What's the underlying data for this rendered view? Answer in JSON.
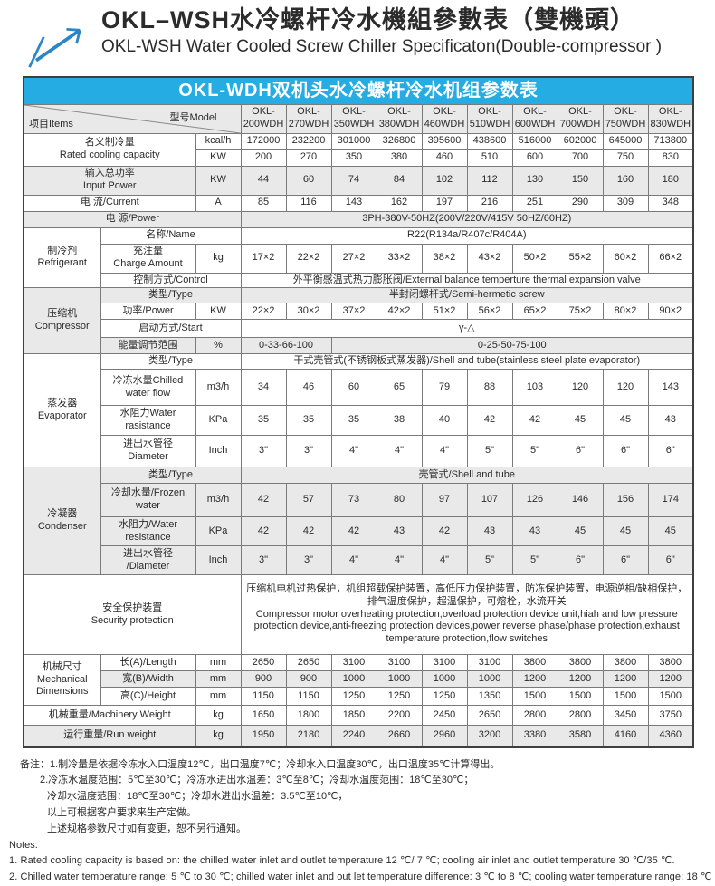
{
  "page": {
    "title_zh": "OKL–WSH水冷螺杆冷水機組參數表（雙機頭）",
    "title_en": "OKL-WSH Water Cooled Screw Chiller Specificaton(Double-compressor )"
  },
  "colors": {
    "banner_cyan": "#25ace3",
    "logo_blue": "#2b86c6",
    "shaded_row": "#e9e9e9",
    "border_dark": "#3f3f3f"
  },
  "table": {
    "banner": "OKL-WDH双机头水冷螺杆冷水机组参数表",
    "corner": {
      "items": "项目Items",
      "model": "型号Model"
    },
    "models": [
      "OKL-\n200WDH",
      "OKL-\n270WDH",
      "OKL-\n350WDH",
      "OKL-\n380WDH",
      "OKL-\n460WDH",
      "OKL-\n510WDH",
      "OKL-\n600WDH",
      "OKL-\n700WDH",
      "OKL-\n750WDH",
      "OKL-\n830WDH"
    ],
    "rows": [
      {
        "name": "row-rated-cooling-kcal",
        "shaded": false,
        "cells": [
          {
            "t": "名义制冷量\nRated cooling capacity",
            "cs": 2,
            "rs": 2,
            "k": "label",
            "name": "label-rated-cooling-capacity"
          },
          {
            "t": "kcal/h",
            "k": "unit",
            "name": "unit-kcal-h"
          },
          {
            "t": "172000"
          },
          {
            "t": "232200"
          },
          {
            "t": "301000"
          },
          {
            "t": "326800"
          },
          {
            "t": "395600"
          },
          {
            "t": "438600"
          },
          {
            "t": "516000"
          },
          {
            "t": "602000"
          },
          {
            "t": "645000"
          },
          {
            "t": "713800"
          }
        ]
      },
      {
        "name": "row-rated-cooling-kw",
        "shaded": false,
        "cells": [
          {
            "t": "KW",
            "k": "unit",
            "name": "unit-kw"
          },
          {
            "t": "200"
          },
          {
            "t": "270"
          },
          {
            "t": "350"
          },
          {
            "t": "380"
          },
          {
            "t": "460"
          },
          {
            "t": "510"
          },
          {
            "t": "600"
          },
          {
            "t": "700"
          },
          {
            "t": "750"
          },
          {
            "t": "830"
          }
        ]
      },
      {
        "name": "row-input-power",
        "shaded": true,
        "cells": [
          {
            "t": "输入总功率\nInput Power",
            "cs": 2,
            "k": "label",
            "name": "label-input-power"
          },
          {
            "t": "KW",
            "k": "unit"
          },
          {
            "t": "44"
          },
          {
            "t": "60"
          },
          {
            "t": "74"
          },
          {
            "t": "84"
          },
          {
            "t": "102"
          },
          {
            "t": "112"
          },
          {
            "t": "130"
          },
          {
            "t": "150"
          },
          {
            "t": "160"
          },
          {
            "t": "180"
          }
        ]
      },
      {
        "name": "row-current",
        "shaded": false,
        "cells": [
          {
            "t": "电  流/Current",
            "cs": 2,
            "k": "label",
            "name": "label-current"
          },
          {
            "t": "A",
            "k": "unit"
          },
          {
            "t": "85"
          },
          {
            "t": "116"
          },
          {
            "t": "143"
          },
          {
            "t": "162"
          },
          {
            "t": "197"
          },
          {
            "t": "216"
          },
          {
            "t": "251"
          },
          {
            "t": "290"
          },
          {
            "t": "309"
          },
          {
            "t": "348"
          }
        ]
      },
      {
        "name": "row-power-source",
        "shaded": true,
        "cells": [
          {
            "t": "电    源/Power",
            "cs": 3,
            "k": "label",
            "name": "label-power-source"
          },
          {
            "t": "3PH-380V-50HZ(200V/220V/415V  50HZ/60HZ)",
            "cs": 10,
            "k": "merge",
            "name": "value-power-source"
          }
        ]
      },
      {
        "name": "row-refrigerant-name",
        "shaded": false,
        "cells": [
          {
            "t": "制冷剂\nRefrigerant",
            "rs": 3,
            "k": "group",
            "name": "group-refrigerant"
          },
          {
            "t": "名称/Name",
            "cs": 2,
            "k": "label",
            "name": "label-refrigerant-name"
          },
          {
            "t": "R22(R134a/R407c/R404A)",
            "cs": 10,
            "k": "merge",
            "name": "value-refrigerant-name"
          }
        ]
      },
      {
        "name": "row-charge-amount",
        "shaded": false,
        "cells": [
          {
            "t": "充注量\nCharge Amount",
            "k": "label",
            "name": "label-charge-amount"
          },
          {
            "t": "kg",
            "k": "unit"
          },
          {
            "t": "17×2"
          },
          {
            "t": "22×2"
          },
          {
            "t": "27×2"
          },
          {
            "t": "33×2"
          },
          {
            "t": "38×2"
          },
          {
            "t": "43×2"
          },
          {
            "t": "50×2"
          },
          {
            "t": "55×2"
          },
          {
            "t": "60×2"
          },
          {
            "t": "66×2"
          }
        ]
      },
      {
        "name": "row-control",
        "shaded": false,
        "cells": [
          {
            "t": "控制方式/Control",
            "cs": 2,
            "k": "label",
            "name": "label-control"
          },
          {
            "t": "外平衡感温式热力膨胀阀/External balance temperture thermal expansion valve",
            "cs": 10,
            "k": "merge",
            "name": "value-control"
          }
        ]
      },
      {
        "name": "row-compressor-type",
        "shaded": true,
        "cells": [
          {
            "t": "压缩机\nCompressor",
            "rs": 4,
            "k": "group",
            "name": "group-compressor"
          },
          {
            "t": "类型/Type",
            "cs": 2,
            "k": "label",
            "name": "label-compressor-type"
          },
          {
            "t": "半封闭螺杆式/Semi-hermetic screw",
            "cs": 10,
            "k": "merge",
            "name": "value-compressor-type"
          }
        ]
      },
      {
        "name": "row-compressor-power",
        "shaded": false,
        "cells": [
          {
            "t": "功率/Power",
            "k": "label",
            "name": "label-compressor-power"
          },
          {
            "t": "KW",
            "k": "unit"
          },
          {
            "t": "22×2"
          },
          {
            "t": "30×2"
          },
          {
            "t": "37×2"
          },
          {
            "t": "42×2"
          },
          {
            "t": "51×2"
          },
          {
            "t": "56×2"
          },
          {
            "t": "65×2"
          },
          {
            "t": "75×2"
          },
          {
            "t": "80×2"
          },
          {
            "t": "90×2"
          }
        ]
      },
      {
        "name": "row-start-mode",
        "shaded": false,
        "cells": [
          {
            "t": "启动方式/Start",
            "cs": 2,
            "k": "label",
            "name": "label-start-mode"
          },
          {
            "t": "γ-△",
            "cs": 10,
            "k": "merge",
            "name": "value-start-mode"
          }
        ]
      },
      {
        "name": "row-capacity-control",
        "shaded": true,
        "cells": [
          {
            "t": "能量调节范围",
            "k": "label",
            "name": "label-capacity-control"
          },
          {
            "t": "%",
            "k": "unit"
          },
          {
            "t": "0-33-66-100",
            "cs": 2,
            "name": "value-capacity-control-small"
          },
          {
            "t": "0-25-50-75-100",
            "cs": 8,
            "name": "value-capacity-control-large"
          }
        ]
      },
      {
        "name": "row-evaporator-type",
        "shaded": false,
        "cells": [
          {
            "t": "蒸发器\nEvaporator",
            "rs": 4,
            "k": "group",
            "name": "group-evaporator"
          },
          {
            "t": "类型/Type",
            "cs": 2,
            "k": "label",
            "name": "label-evaporator-type"
          },
          {
            "t": "干式壳管式(不锈钢板式蒸发器)/Shell and tube(stainless steel plate evaporator)",
            "cs": 10,
            "k": "merge",
            "name": "value-evaporator-type"
          }
        ]
      },
      {
        "name": "row-chilled-water-flow",
        "shaded": false,
        "cells": [
          {
            "t": "冷冻水量Chilled\nwater flow",
            "k": "label",
            "name": "label-chilled-water-flow"
          },
          {
            "t": "m3/h",
            "k": "unit"
          },
          {
            "t": "34"
          },
          {
            "t": "46"
          },
          {
            "t": "60"
          },
          {
            "t": "65"
          },
          {
            "t": "79"
          },
          {
            "t": "88"
          },
          {
            "t": "103"
          },
          {
            "t": "120"
          },
          {
            "t": "120"
          },
          {
            "t": "143"
          }
        ]
      },
      {
        "name": "row-evap-water-resistance",
        "shaded": false,
        "cells": [
          {
            "t": "水阻力Water\nrasistance",
            "k": "label",
            "name": "label-evap-water-resistance"
          },
          {
            "t": "KPa",
            "k": "unit"
          },
          {
            "t": "35"
          },
          {
            "t": "35"
          },
          {
            "t": "35"
          },
          {
            "t": "38"
          },
          {
            "t": "40"
          },
          {
            "t": "42"
          },
          {
            "t": "42"
          },
          {
            "t": "45"
          },
          {
            "t": "45"
          },
          {
            "t": "43"
          }
        ]
      },
      {
        "name": "row-evap-diameter",
        "shaded": false,
        "cells": [
          {
            "t": "进出水管径\nDiameter",
            "k": "label",
            "name": "label-evap-diameter"
          },
          {
            "t": "Inch",
            "k": "unit"
          },
          {
            "t": "3\""
          },
          {
            "t": "3\""
          },
          {
            "t": "4\""
          },
          {
            "t": "4\""
          },
          {
            "t": "4\""
          },
          {
            "t": "5\""
          },
          {
            "t": "5\""
          },
          {
            "t": "6\""
          },
          {
            "t": "6\""
          },
          {
            "t": "6\""
          }
        ]
      },
      {
        "name": "row-condenser-type",
        "shaded": true,
        "cells": [
          {
            "t": "冷凝器\nCondenser",
            "rs": 4,
            "k": "group",
            "name": "group-condenser"
          },
          {
            "t": "类型/Type",
            "cs": 2,
            "k": "label",
            "name": "label-condenser-type"
          },
          {
            "t": "壳管式/Shell and tube",
            "cs": 10,
            "k": "merge",
            "name": "value-condenser-type"
          }
        ]
      },
      {
        "name": "row-frozen-water",
        "shaded": true,
        "cells": [
          {
            "t": "冷却水量/Frozen\nwater",
            "k": "label",
            "name": "label-frozen-water"
          },
          {
            "t": "m3/h",
            "k": "unit"
          },
          {
            "t": "42"
          },
          {
            "t": "57"
          },
          {
            "t": "73"
          },
          {
            "t": "80"
          },
          {
            "t": "97"
          },
          {
            "t": "107"
          },
          {
            "t": "126"
          },
          {
            "t": "146"
          },
          {
            "t": "156"
          },
          {
            "t": "174"
          }
        ]
      },
      {
        "name": "row-cond-water-resistance",
        "shaded": true,
        "cells": [
          {
            "t": "水阻力/Water\nresistance",
            "k": "label",
            "name": "label-cond-water-resistance"
          },
          {
            "t": "KPa",
            "k": "unit"
          },
          {
            "t": "42"
          },
          {
            "t": "42"
          },
          {
            "t": "42"
          },
          {
            "t": "43"
          },
          {
            "t": "42"
          },
          {
            "t": "43"
          },
          {
            "t": "43"
          },
          {
            "t": "45"
          },
          {
            "t": "45"
          },
          {
            "t": "45"
          }
        ]
      },
      {
        "name": "row-cond-diameter",
        "shaded": true,
        "cells": [
          {
            "t": "进出水管径\n/Diameter",
            "k": "label",
            "name": "label-cond-diameter"
          },
          {
            "t": "Inch",
            "k": "unit"
          },
          {
            "t": "3\""
          },
          {
            "t": "3\""
          },
          {
            "t": "4\""
          },
          {
            "t": "4\""
          },
          {
            "t": "4\""
          },
          {
            "t": "5\""
          },
          {
            "t": "5\""
          },
          {
            "t": "6\""
          },
          {
            "t": "6\""
          },
          {
            "t": "6\""
          }
        ]
      },
      {
        "name": "row-security-protection",
        "shaded": false,
        "cells": [
          {
            "t": "安全保护装置\nSecurity protection",
            "cs": 3,
            "k": "label",
            "name": "label-security-protection"
          },
          {
            "t": "压缩机电机过热保护，机组超载保护装置，高低压力保护装置，防冻保护装置，电源逆相/缺相保护，排气温度保护，超温保护，可熔栓，水流开关\nCompressor motor overheating protection,overload protection device unit,hiah and low pressure protection device,anti-freezing protection devices,power reverse phase/phase protection,exhaust temperature protection,flow switches",
            "cs": 10,
            "k": "security",
            "name": "value-security-protection"
          }
        ]
      },
      {
        "name": "row-length",
        "shaded": false,
        "cells": [
          {
            "t": "机械尺寸\nMechanical\nDimensions",
            "rs": 3,
            "k": "group",
            "name": "group-mechanical-dimensions"
          },
          {
            "t": "长(A)/Length",
            "k": "label",
            "name": "label-length"
          },
          {
            "t": "mm",
            "k": "unit"
          },
          {
            "t": "2650"
          },
          {
            "t": "2650"
          },
          {
            "t": "3100"
          },
          {
            "t": "3100"
          },
          {
            "t": "3100"
          },
          {
            "t": "3100"
          },
          {
            "t": "3800"
          },
          {
            "t": "3800"
          },
          {
            "t": "3800"
          },
          {
            "t": "3800"
          }
        ]
      },
      {
        "name": "row-width",
        "shaded": true,
        "cells": [
          {
            "t": "宽(B)/Width",
            "k": "label",
            "name": "label-width"
          },
          {
            "t": "mm",
            "k": "unit"
          },
          {
            "t": "900"
          },
          {
            "t": "900"
          },
          {
            "t": "1000"
          },
          {
            "t": "1000"
          },
          {
            "t": "1000"
          },
          {
            "t": "1000"
          },
          {
            "t": "1200"
          },
          {
            "t": "1200"
          },
          {
            "t": "1200"
          },
          {
            "t": "1200"
          }
        ]
      },
      {
        "name": "row-height",
        "shaded": false,
        "cells": [
          {
            "t": "高(C)/Height",
            "k": "label",
            "name": "label-height"
          },
          {
            "t": "mm",
            "k": "unit"
          },
          {
            "t": "1150"
          },
          {
            "t": "1150"
          },
          {
            "t": "1250"
          },
          {
            "t": "1250"
          },
          {
            "t": "1250"
          },
          {
            "t": "1350"
          },
          {
            "t": "1500"
          },
          {
            "t": "1500"
          },
          {
            "t": "1500"
          },
          {
            "t": "1500"
          }
        ]
      },
      {
        "name": "row-machinery-weight",
        "shaded": false,
        "cells": [
          {
            "t": "机械重量/Machinery Weight",
            "cs": 2,
            "k": "label",
            "name": "label-machinery-weight"
          },
          {
            "t": "kg",
            "k": "unit"
          },
          {
            "t": "1650"
          },
          {
            "t": "1800"
          },
          {
            "t": "1850"
          },
          {
            "t": "2200"
          },
          {
            "t": "2450"
          },
          {
            "t": "2650"
          },
          {
            "t": "2800"
          },
          {
            "t": "2800"
          },
          {
            "t": "3450"
          },
          {
            "t": "3750"
          }
        ]
      },
      {
        "name": "row-run-weight",
        "shaded": true,
        "cells": [
          {
            "t": "运行重量/Run weight",
            "cs": 2,
            "k": "label",
            "name": "label-run-weight"
          },
          {
            "t": "kg",
            "k": "unit"
          },
          {
            "t": "1950"
          },
          {
            "t": "2180"
          },
          {
            "t": "2240"
          },
          {
            "t": "2660"
          },
          {
            "t": "2960"
          },
          {
            "t": "3200"
          },
          {
            "t": "3380"
          },
          {
            "t": "3580"
          },
          {
            "t": "4160"
          },
          {
            "t": "4360"
          }
        ]
      }
    ]
  },
  "notes": {
    "zh": [
      "备注：1.制冷量是依据冷冻水入口温度12℃，出口温度7℃；冷却水入口温度30℃，出口温度35℃计算得出。",
      "2.冷冻水温度范围：5℃至30℃；冷冻水进出水温差：3℃至8℃；冷却水温度范围：18℃至30℃；",
      "冷却水温度范围：18℃至30℃；冷却水进出水温差：3.5℃至10℃，",
      "以上可根据客户要求来生产定做。",
      "上述规格参数尺寸如有变更，恕不另行通知。"
    ],
    "en_header": "Notes:",
    "en": [
      "1. Rated cooling capacity is based on: the chilled water inlet and outlet temperature  12 ℃/ 7 ℃; cooling air inlet and outlet temperature  30 ℃/35 ℃.",
      "2. Chilled water temperature range: 5 ℃ to 30 ℃; chilled water inlet and out let temperature  difference:  3 ℃ to 8 ℃; cooling water temperature  range: 18 ℃"
    ]
  }
}
